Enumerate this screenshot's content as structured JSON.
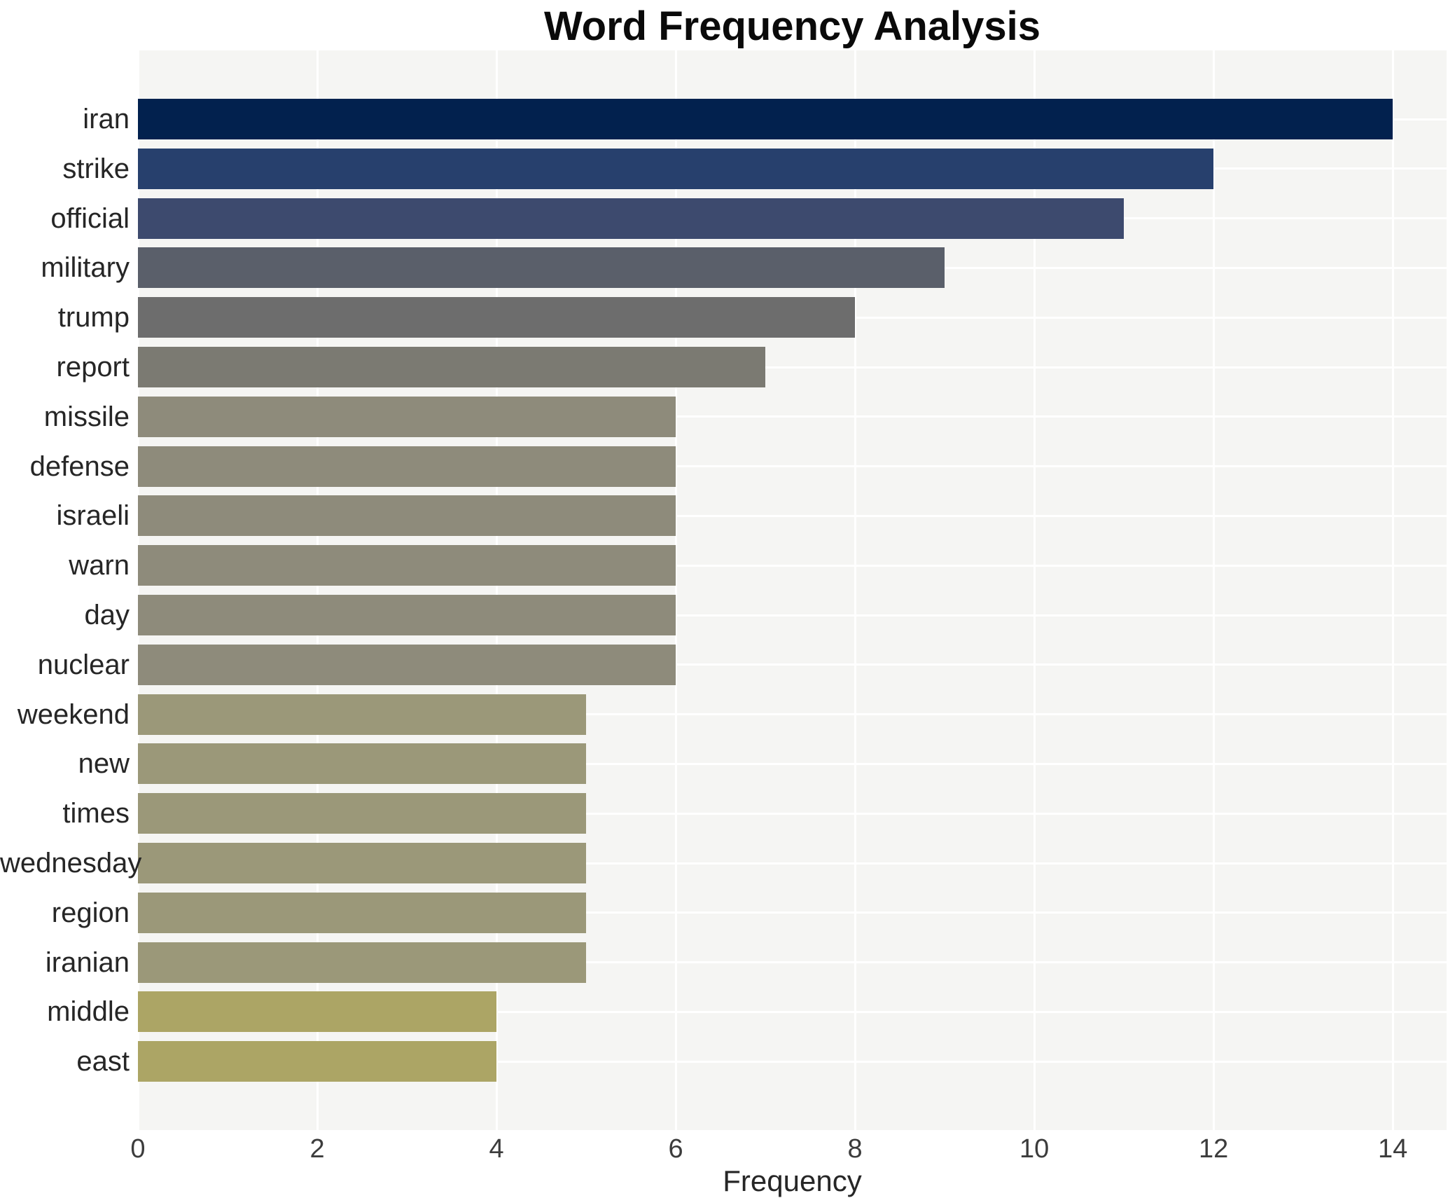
{
  "chart_data": {
    "type": "bar",
    "orientation": "horizontal",
    "title": "Word Frequency Analysis",
    "xlabel": "Frequency",
    "ylabel": "",
    "categories": [
      "iran",
      "strike",
      "official",
      "military",
      "trump",
      "report",
      "missile",
      "defense",
      "israeli",
      "warn",
      "day",
      "nuclear",
      "weekend",
      "new",
      "times",
      "wednesday",
      "region",
      "iranian",
      "middle",
      "east"
    ],
    "values": [
      14,
      12,
      11,
      9,
      8,
      7,
      6,
      6,
      6,
      6,
      6,
      6,
      5,
      5,
      5,
      5,
      5,
      5,
      4,
      4
    ],
    "bar_colors": [
      "#02214e",
      "#27406d",
      "#3d4a6e",
      "#5a5f6a",
      "#6d6d6d",
      "#7b7a72",
      "#8e8b7b",
      "#8e8b7b",
      "#8e8b7b",
      "#8e8b7b",
      "#8e8b7b",
      "#8e8b7b",
      "#9b9879",
      "#9b9879",
      "#9b9879",
      "#9b9879",
      "#9b9879",
      "#9b9879",
      "#aca565",
      "#aca565"
    ],
    "xlim": [
      0,
      14.6
    ],
    "xticks": [
      0,
      2,
      4,
      6,
      8,
      10,
      12,
      14
    ],
    "grid": true,
    "legend": false,
    "colors": {
      "plot_bg": "#f5f5f3",
      "grid": "#ffffff",
      "tick_text": "#3c3c3c",
      "label_text": "#262626",
      "title_text": "#0a0a0a",
      "page_bg": "#ffffff"
    }
  }
}
